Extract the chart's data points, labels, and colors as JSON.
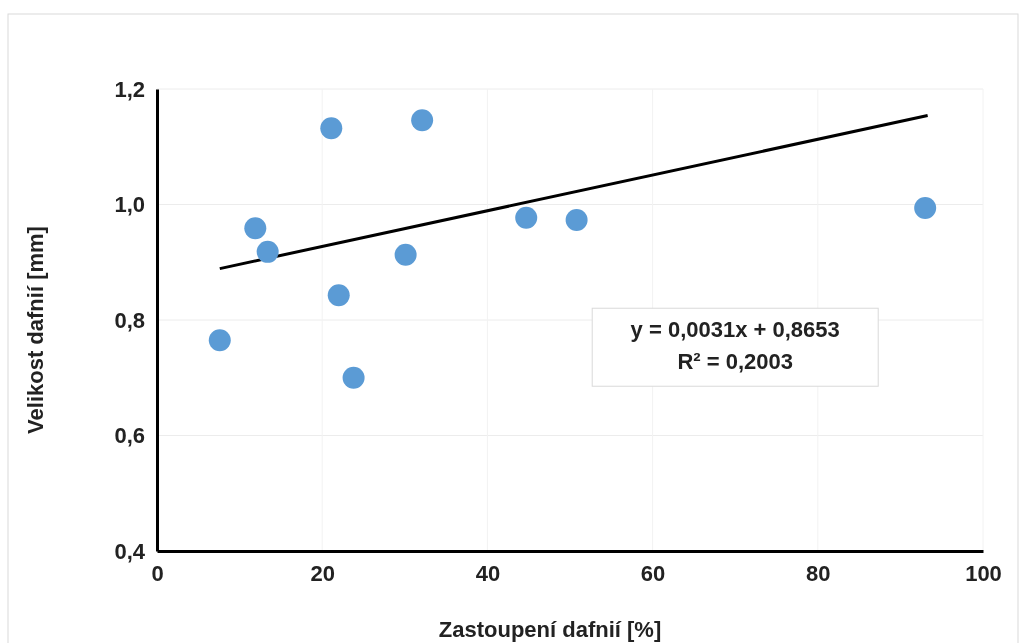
{
  "chart_data": {
    "type": "scatter",
    "xlabel": "Zastoupení dafnií [%]",
    "ylabel": "Velikost dafnií [mm]",
    "xlim": [
      0,
      100
    ],
    "xticks": [
      0,
      20,
      40,
      60,
      80,
      100
    ],
    "ylim": [
      0.4,
      1.2
    ],
    "yticks": [
      {
        "value": 0.4,
        "label": "0,4"
      },
      {
        "value": 0.6,
        "label": "0,6"
      },
      {
        "value": 0.8,
        "label": "0,8"
      },
      {
        "value": 1.0,
        "label": "1,0"
      },
      {
        "value": 1.2,
        "label": "1,2"
      }
    ],
    "grid": true,
    "series": [
      {
        "marker": "circle",
        "color": "#5b9bd5",
        "x": [
          7.6,
          11.9,
          13.4,
          21.1,
          22.0,
          23.8,
          30.1,
          32.1,
          44.7,
          50.8,
          93.0
        ],
        "values": [
          0.765,
          0.959,
          0.918,
          1.132,
          0.843,
          0.7,
          0.913,
          1.146,
          0.977,
          0.973,
          0.994
        ]
      },
      {
        "type": "line",
        "color": "#000000",
        "x": [
          7.6,
          93.3
        ],
        "values": [
          0.889,
          1.154
        ]
      }
    ],
    "annotations": [
      "y = 0,0031x + 0,8653\nR² = 0,2003"
    ]
  }
}
